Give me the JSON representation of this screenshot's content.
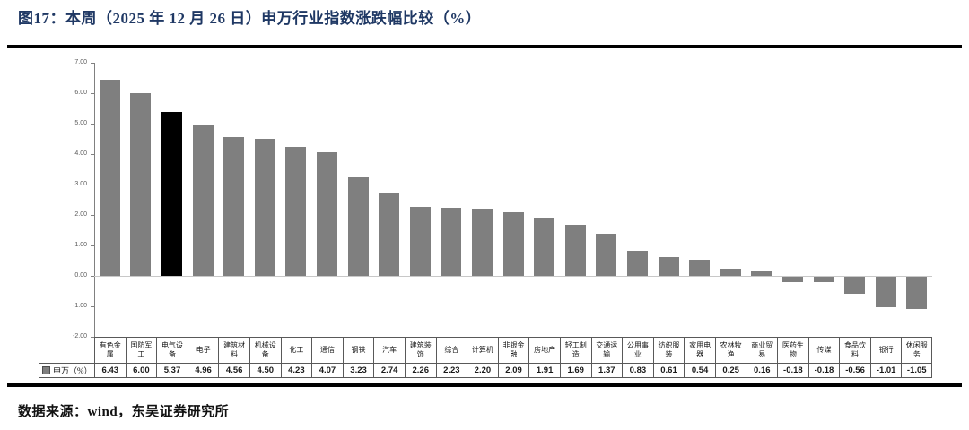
{
  "title": "图17：本周（2025 年 12 月 26 日）申万行业指数涨跌幅比较（%）",
  "source": "数据来源：wind，东吴证券研究所",
  "colors": {
    "title_navy": "#1f3864",
    "frame_line": "#000000",
    "axis_gray": "#808080",
    "zero_line": "#c8c8c8",
    "table_border": "#595959",
    "bar_gray": "#7f7f7f",
    "highlight_black": "#000000"
  },
  "chart_data": {
    "type": "bar",
    "title": "本周（2025 年 12 月 26 日）申万行业指数涨跌幅比较（%）",
    "series_name": "申万（%）",
    "legend_position": "table-left",
    "grid": false,
    "data_table_shown": true,
    "ylim": [
      -2,
      7
    ],
    "y_ticks": [
      7,
      6,
      5,
      4,
      3,
      2,
      1,
      0,
      -1,
      -2
    ],
    "categories": [
      "有色金属",
      "国防军工",
      "电气设备",
      "电子",
      "建筑材料",
      "机械设备",
      "化工",
      "通信",
      "钢铁",
      "汽车",
      "建筑装饰",
      "综合",
      "计算机",
      "非银金融",
      "房地产",
      "轻工制造",
      "交通运输",
      "公用事业",
      "纺织服装",
      "家用电器",
      "农林牧渔",
      "商业贸易",
      "医药生物",
      "传媒",
      "食品饮料",
      "银行",
      "休闲服务"
    ],
    "values": [
      6.43,
      6.0,
      5.37,
      4.96,
      4.56,
      4.5,
      4.23,
      4.07,
      3.23,
      2.74,
      2.26,
      2.23,
      2.2,
      2.09,
      1.91,
      1.69,
      1.37,
      0.83,
      0.61,
      0.54,
      0.25,
      0.16,
      -0.18,
      -0.18,
      -0.56,
      -1.01,
      -1.05
    ],
    "bar_color": "#7f7f7f",
    "highlight_index": 2,
    "highlight_color": "#000000"
  }
}
